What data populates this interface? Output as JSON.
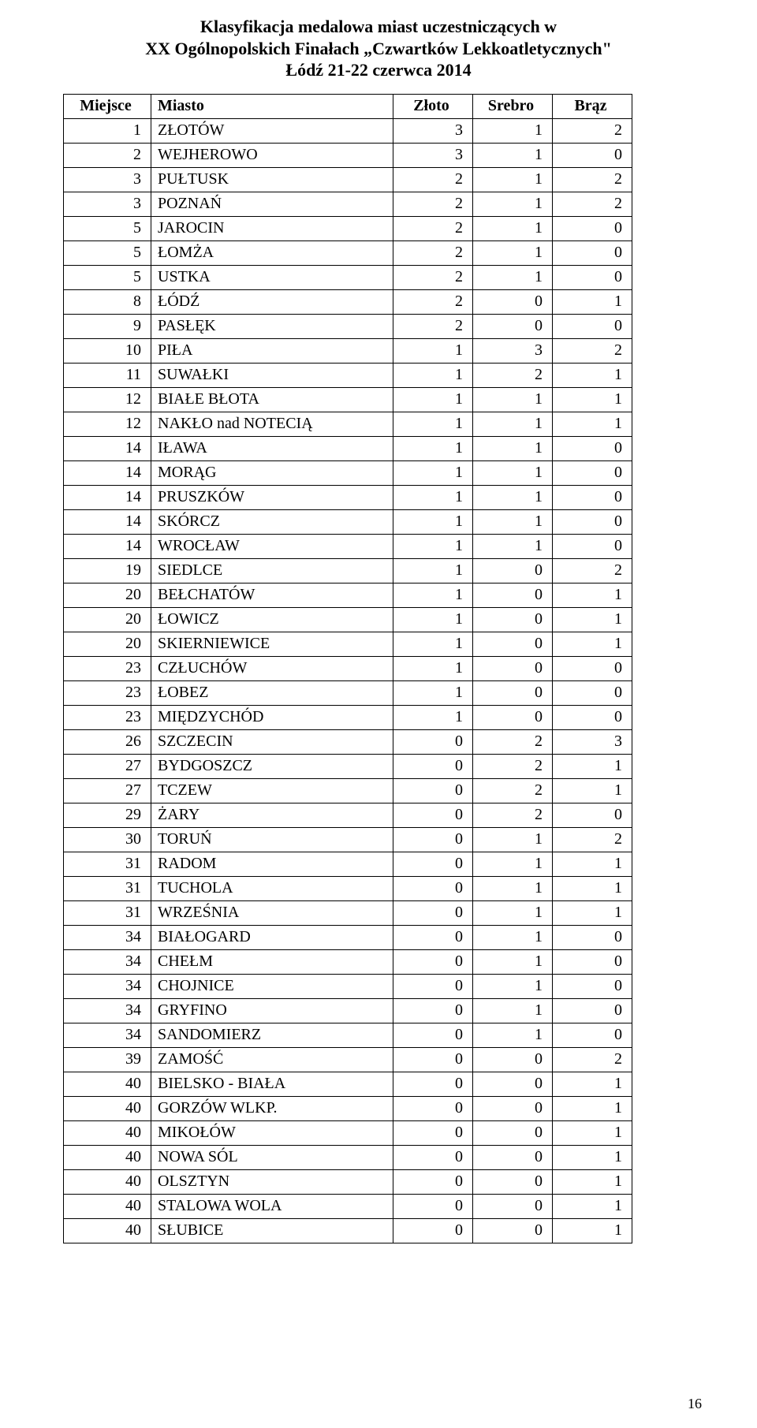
{
  "title": {
    "line1": "Klasyfikacja medalowa miast uczestniczących w",
    "line2": "XX Ogólnopolskich Finałach „Czwartków Lekkoatletycznych\"",
    "line3": "Łódź 21-22 czerwca 2014"
  },
  "table": {
    "headers": {
      "miejsce": "Miejsce",
      "miasto": "Miasto",
      "zloto": "Złoto",
      "srebro": "Srebro",
      "braz": "Brąz"
    },
    "rows": [
      {
        "miejsce": "1",
        "miasto": "ZŁOTÓW",
        "zloto": "3",
        "srebro": "1",
        "braz": "2"
      },
      {
        "miejsce": "2",
        "miasto": "WEJHEROWO",
        "zloto": "3",
        "srebro": "1",
        "braz": "0"
      },
      {
        "miejsce": "3",
        "miasto": "PUŁTUSK",
        "zloto": "2",
        "srebro": "1",
        "braz": "2"
      },
      {
        "miejsce": "3",
        "miasto": "POZNAŃ",
        "zloto": "2",
        "srebro": "1",
        "braz": "2"
      },
      {
        "miejsce": "5",
        "miasto": "JAROCIN",
        "zloto": "2",
        "srebro": "1",
        "braz": "0"
      },
      {
        "miejsce": "5",
        "miasto": "ŁOMŻA",
        "zloto": "2",
        "srebro": "1",
        "braz": "0"
      },
      {
        "miejsce": "5",
        "miasto": "USTKA",
        "zloto": "2",
        "srebro": "1",
        "braz": "0"
      },
      {
        "miejsce": "8",
        "miasto": "ŁÓDŹ",
        "zloto": "2",
        "srebro": "0",
        "braz": "1"
      },
      {
        "miejsce": "9",
        "miasto": "PASŁĘK",
        "zloto": "2",
        "srebro": "0",
        "braz": "0"
      },
      {
        "miejsce": "10",
        "miasto": "PIŁA",
        "zloto": "1",
        "srebro": "3",
        "braz": "2"
      },
      {
        "miejsce": "11",
        "miasto": "SUWAŁKI",
        "zloto": "1",
        "srebro": "2",
        "braz": "1"
      },
      {
        "miejsce": "12",
        "miasto": "BIAŁE BŁOTA",
        "zloto": "1",
        "srebro": "1",
        "braz": "1"
      },
      {
        "miejsce": "12",
        "miasto": "NAKŁO nad NOTECIĄ",
        "zloto": "1",
        "srebro": "1",
        "braz": "1"
      },
      {
        "miejsce": "14",
        "miasto": "IŁAWA",
        "zloto": "1",
        "srebro": "1",
        "braz": "0"
      },
      {
        "miejsce": "14",
        "miasto": "MORĄG",
        "zloto": "1",
        "srebro": "1",
        "braz": "0"
      },
      {
        "miejsce": "14",
        "miasto": "PRUSZKÓW",
        "zloto": "1",
        "srebro": "1",
        "braz": "0"
      },
      {
        "miejsce": "14",
        "miasto": "SKÓRCZ",
        "zloto": "1",
        "srebro": "1",
        "braz": "0"
      },
      {
        "miejsce": "14",
        "miasto": "WROCŁAW",
        "zloto": "1",
        "srebro": "1",
        "braz": "0"
      },
      {
        "miejsce": "19",
        "miasto": "SIEDLCE",
        "zloto": "1",
        "srebro": "0",
        "braz": "2"
      },
      {
        "miejsce": "20",
        "miasto": "BEŁCHATÓW",
        "zloto": "1",
        "srebro": "0",
        "braz": "1"
      },
      {
        "miejsce": "20",
        "miasto": "ŁOWICZ",
        "zloto": "1",
        "srebro": "0",
        "braz": "1"
      },
      {
        "miejsce": "20",
        "miasto": "SKIERNIEWICE",
        "zloto": "1",
        "srebro": "0",
        "braz": "1"
      },
      {
        "miejsce": "23",
        "miasto": "CZŁUCHÓW",
        "zloto": "1",
        "srebro": "0",
        "braz": "0"
      },
      {
        "miejsce": "23",
        "miasto": "ŁOBEZ",
        "zloto": "1",
        "srebro": "0",
        "braz": "0"
      },
      {
        "miejsce": "23",
        "miasto": "MIĘDZYCHÓD",
        "zloto": "1",
        "srebro": "0",
        "braz": "0"
      },
      {
        "miejsce": "26",
        "miasto": "SZCZECIN",
        "zloto": "0",
        "srebro": "2",
        "braz": "3"
      },
      {
        "miejsce": "27",
        "miasto": "BYDGOSZCZ",
        "zloto": "0",
        "srebro": "2",
        "braz": "1"
      },
      {
        "miejsce": "27",
        "miasto": "TCZEW",
        "zloto": "0",
        "srebro": "2",
        "braz": "1"
      },
      {
        "miejsce": "29",
        "miasto": "ŻARY",
        "zloto": "0",
        "srebro": "2",
        "braz": "0"
      },
      {
        "miejsce": "30",
        "miasto": "TORUŃ",
        "zloto": "0",
        "srebro": "1",
        "braz": "2"
      },
      {
        "miejsce": "31",
        "miasto": "RADOM",
        "zloto": "0",
        "srebro": "1",
        "braz": "1"
      },
      {
        "miejsce": "31",
        "miasto": "TUCHOLA",
        "zloto": "0",
        "srebro": "1",
        "braz": "1"
      },
      {
        "miejsce": "31",
        "miasto": "WRZEŚNIA",
        "zloto": "0",
        "srebro": "1",
        "braz": "1"
      },
      {
        "miejsce": "34",
        "miasto": "BIAŁOGARD",
        "zloto": "0",
        "srebro": "1",
        "braz": "0"
      },
      {
        "miejsce": "34",
        "miasto": "CHEŁM",
        "zloto": "0",
        "srebro": "1",
        "braz": "0"
      },
      {
        "miejsce": "34",
        "miasto": "CHOJNICE",
        "zloto": "0",
        "srebro": "1",
        "braz": "0"
      },
      {
        "miejsce": "34",
        "miasto": "GRYFINO",
        "zloto": "0",
        "srebro": "1",
        "braz": "0"
      },
      {
        "miejsce": "34",
        "miasto": "SANDOMIERZ",
        "zloto": "0",
        "srebro": "1",
        "braz": "0"
      },
      {
        "miejsce": "39",
        "miasto": "ZAMOŚĆ",
        "zloto": "0",
        "srebro": "0",
        "braz": "2"
      },
      {
        "miejsce": "40",
        "miasto": "BIELSKO - BIAŁA",
        "zloto": "0",
        "srebro": "0",
        "braz": "1"
      },
      {
        "miejsce": "40",
        "miasto": "GORZÓW WLKP.",
        "zloto": "0",
        "srebro": "0",
        "braz": "1"
      },
      {
        "miejsce": "40",
        "miasto": "MIKOŁÓW",
        "zloto": "0",
        "srebro": "0",
        "braz": "1"
      },
      {
        "miejsce": "40",
        "miasto": "NOWA SÓL",
        "zloto": "0",
        "srebro": "0",
        "braz": "1"
      },
      {
        "miejsce": "40",
        "miasto": "OLSZTYN",
        "zloto": "0",
        "srebro": "0",
        "braz": "1"
      },
      {
        "miejsce": "40",
        "miasto": "STALOWA WOLA",
        "zloto": "0",
        "srebro": "0",
        "braz": "1"
      },
      {
        "miejsce": "40",
        "miasto": "SŁUBICE",
        "zloto": "0",
        "srebro": "0",
        "braz": "1"
      }
    ]
  },
  "style": {
    "font_family": "Times New Roman",
    "title_fontsize": 22,
    "table_fontsize": 20,
    "border_color": "#000000",
    "background_color": "#ffffff",
    "col_widths": {
      "miejsce": 90,
      "miasto": 290,
      "num": 80
    }
  },
  "page_number": "16"
}
